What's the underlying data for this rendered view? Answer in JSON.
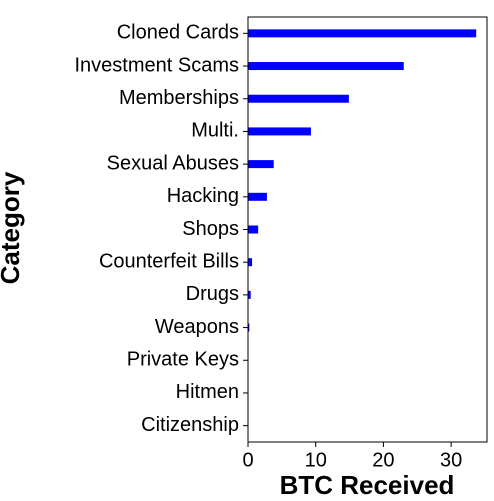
{
  "chart_data": {
    "type": "barh",
    "xlabel": "BTC Received",
    "ylabel": "Category",
    "categories": [
      "Cloned Cards",
      "Investment Scams",
      "Memberships",
      "Multi.",
      "Sexual Abuses",
      "Hacking",
      "Shops",
      "Counterfeit Bills",
      "Drugs",
      "Weapons",
      "Private Keys",
      "Hitmen",
      "Citizenship"
    ],
    "values": [
      33.7,
      23.0,
      14.9,
      9.3,
      3.8,
      2.8,
      1.5,
      0.6,
      0.4,
      0.2,
      0.05,
      0.02,
      0.01
    ],
    "color": "#0000ff",
    "xlim": [
      0,
      35.3
    ],
    "xticks": [
      0,
      10,
      20,
      30
    ]
  }
}
